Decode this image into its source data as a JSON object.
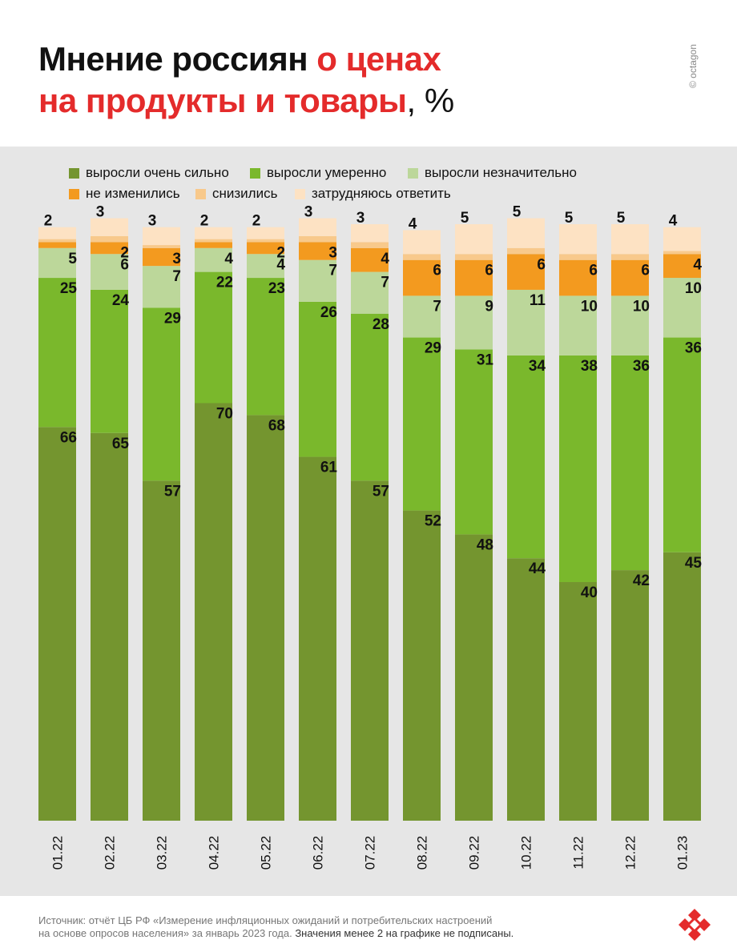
{
  "title": {
    "part1": "Мнение россиян ",
    "part2_red": "о ценах",
    "part3_red": "на продукты и товары",
    "part4": ", %"
  },
  "credit": "© octagon",
  "colors": {
    "strong": "#74952f",
    "moderate": "#7ab82c",
    "slight": "#bcd79a",
    "unchanged": "#f39a1f",
    "decreased": "#f8c98b",
    "dont_know": "#fde2c3"
  },
  "legend": [
    {
      "label": "выросли очень сильно",
      "color": "#74952f"
    },
    {
      "label": "выросли умеренно",
      "color": "#7ab82c"
    },
    {
      "label": "выросли незначительно",
      "color": "#bcd79a"
    },
    {
      "label": "не изменились",
      "color": "#f39a1f"
    },
    {
      "label": "снизились",
      "color": "#f8c98b"
    },
    {
      "label": "затрудняюсь ответить",
      "color": "#fde2c3"
    }
  ],
  "chart_data": {
    "type": "bar",
    "stacked": true,
    "categories": [
      "01.22",
      "02.22",
      "03.22",
      "04.22",
      "05.22",
      "06.22",
      "07.22",
      "08.22",
      "09.22",
      "10.22",
      "11.22",
      "12.22",
      "01.23"
    ],
    "series": [
      {
        "name": "выросли очень сильно",
        "values": [
          66,
          65,
          57,
          70,
          68,
          61,
          57,
          52,
          48,
          44,
          40,
          42,
          45
        ]
      },
      {
        "name": "выросли умеренно",
        "values": [
          25,
          24,
          29,
          22,
          23,
          26,
          28,
          29,
          31,
          34,
          38,
          36,
          36
        ]
      },
      {
        "name": "выросли незначительно",
        "values": [
          5,
          6,
          7,
          4,
          4,
          7,
          7,
          7,
          9,
          11,
          10,
          10,
          10
        ]
      },
      {
        "name": "не изменились",
        "values": [
          1,
          2,
          3,
          1,
          2,
          3,
          4,
          6,
          6,
          6,
          6,
          6,
          4
        ]
      },
      {
        "name": "снизились",
        "values": [
          0.5,
          1,
          0.5,
          0.5,
          0.5,
          1,
          1,
          1,
          1,
          1,
          1,
          1,
          0.5
        ]
      },
      {
        "name": "затрудняюсь ответить",
        "values": [
          2,
          3,
          3,
          2,
          2,
          3,
          3,
          4,
          5,
          5,
          5,
          5,
          4
        ]
      }
    ],
    "labels_hidden_below": 2,
    "ylim": [
      0,
      100
    ]
  },
  "footer": {
    "line1": "Источник: отчёт ЦБ РФ «Измерение инфляционных ожиданий и потребительских настроений",
    "line2": "на основе опросов населения» за январь 2023 года. ",
    "note": "Значения менее 2 на графике не подписаны."
  }
}
